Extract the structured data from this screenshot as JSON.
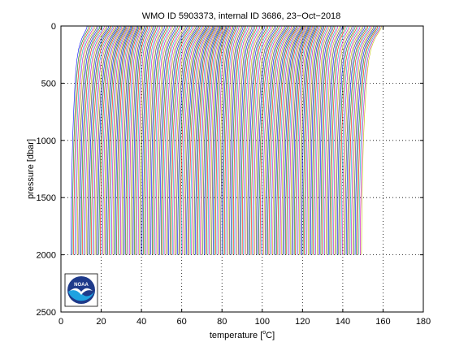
{
  "chart_data": {
    "type": "line",
    "title": "WMO ID 5903373, internal ID 3686, 23−Oct−2018",
    "xlabel_prefix": "temperature [",
    "xlabel_unit_sup": "o",
    "xlabel_suffix": "C]",
    "ylabel": "pressure [dbar]",
    "xlim": [
      0,
      180
    ],
    "ylim": [
      2500,
      0
    ],
    "y_reversed": true,
    "x_ticks": [
      0,
      20,
      40,
      60,
      80,
      100,
      120,
      140,
      160,
      180
    ],
    "x_tick_labels": [
      "0",
      "20",
      "40",
      "60",
      "80",
      "100",
      "120",
      "140",
      "160",
      "180"
    ],
    "y_ticks": [
      0,
      500,
      1000,
      1500,
      2000,
      2500
    ],
    "y_tick_labels": [
      "0",
      "500",
      "1000",
      "1500",
      "2000",
      "2500"
    ],
    "grid": "dotted",
    "profiles": {
      "count": 230,
      "offset_step": 0.63,
      "deep_temp_start": 5,
      "surface_temp_start": 13,
      "surface_temp_end": 172,
      "max_pressure": 2000,
      "pressure_levels": [
        0,
        20,
        50,
        100,
        150,
        200,
        300,
        400,
        500,
        600,
        700,
        800,
        900,
        1000,
        1200,
        1400,
        1600,
        1800,
        2000
      ],
      "shape_temps": [
        8.0,
        7.8,
        7.0,
        5.6,
        4.6,
        3.8,
        2.9,
        2.4,
        2.0,
        1.7,
        1.45,
        1.2,
        1.0,
        0.8,
        0.55,
        0.35,
        0.18,
        0.07,
        0.0
      ],
      "colors": [
        "#0000ff",
        "#008000",
        "#ff0000",
        "#00bfbf",
        "#bf00bf",
        "#bfbf00",
        "#404040"
      ]
    },
    "logo": {
      "text": "NOAA",
      "colors": {
        "sky": "#1e3a8a",
        "sea": "#1fa2e0",
        "bird": "#ffffff"
      }
    }
  }
}
